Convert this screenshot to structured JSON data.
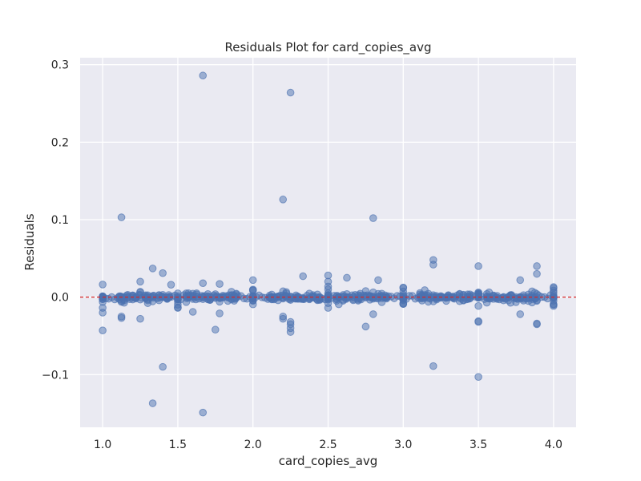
{
  "chart_data": {
    "type": "scatter",
    "title": "Residuals Plot for card_copies_avg",
    "xlabel": "card_copies_avg",
    "ylabel": "Residuals",
    "xlim": [
      0.85,
      4.15
    ],
    "ylim": [
      -0.168,
      0.309
    ],
    "xticks": [
      1.0,
      1.5,
      2.0,
      2.5,
      3.0,
      3.5,
      4.0
    ],
    "xtick_labels": [
      "1.0",
      "1.5",
      "2.0",
      "2.5",
      "3.0",
      "3.5",
      "4.0"
    ],
    "yticks": [
      -0.1,
      0.0,
      0.1,
      0.2,
      0.3
    ],
    "ytick_labels": [
      "−0.1",
      "0.0",
      "0.1",
      "0.2",
      "0.3"
    ],
    "grid": true,
    "reference_line": {
      "y": 0.0,
      "style": "dashed",
      "color": "#d62728"
    },
    "colors": {
      "background": "#eaeaf2",
      "grid": "#ffffff",
      "point": "#4c72b0"
    },
    "outliers": [
      [
        1.667,
        0.286
      ],
      [
        2.25,
        0.264
      ],
      [
        2.2,
        0.126
      ],
      [
        1.125,
        0.103
      ],
      [
        2.8,
        0.102
      ],
      [
        3.2,
        0.048
      ],
      [
        3.2,
        0.042
      ],
      [
        3.5,
        0.04
      ],
      [
        3.889,
        0.04
      ],
      [
        1.333,
        0.037
      ],
      [
        1.4,
        0.031
      ],
      [
        3.889,
        0.03
      ],
      [
        2.5,
        0.028
      ],
      [
        2.333,
        0.027
      ],
      [
        2.625,
        0.025
      ],
      [
        1.25,
        0.02
      ],
      [
        2.0,
        0.022
      ],
      [
        2.833,
        0.022
      ],
      [
        3.778,
        0.022
      ],
      [
        1.667,
        0.018
      ],
      [
        1.778,
        0.017
      ],
      [
        1.455,
        0.016
      ],
      [
        2.5,
        0.02
      ],
      [
        4.0,
        0.013
      ],
      [
        3.0,
        0.012
      ],
      [
        1.0,
        -0.043
      ],
      [
        1.75,
        -0.042
      ],
      [
        2.25,
        -0.045
      ],
      [
        2.25,
        -0.04
      ],
      [
        2.25,
        -0.035
      ],
      [
        2.25,
        -0.032
      ],
      [
        2.75,
        -0.038
      ],
      [
        3.5,
        -0.031
      ],
      [
        3.5,
        -0.032
      ],
      [
        3.889,
        -0.034
      ],
      [
        3.889,
        -0.035
      ],
      [
        1.25,
        -0.028
      ],
      [
        1.125,
        -0.027
      ],
      [
        1.125,
        -0.025
      ],
      [
        2.2,
        -0.028
      ],
      [
        2.2,
        -0.025
      ],
      [
        2.8,
        -0.022
      ],
      [
        3.778,
        -0.022
      ],
      [
        1.6,
        -0.019
      ],
      [
        1.0,
        -0.02
      ],
      [
        1.778,
        -0.021
      ],
      [
        1.4,
        -0.09
      ],
      [
        3.2,
        -0.089
      ],
      [
        3.5,
        -0.103
      ],
      [
        1.333,
        -0.137
      ],
      [
        1.667,
        -0.149
      ]
    ],
    "dense_band": {
      "x_values": [
        1.0,
        1.111,
        1.125,
        1.143,
        1.167,
        1.2,
        1.222,
        1.25,
        1.286,
        1.3,
        1.333,
        1.375,
        1.4,
        1.429,
        1.444,
        1.5,
        1.556,
        1.571,
        1.6,
        1.625,
        1.667,
        1.7,
        1.714,
        1.75,
        1.778,
        1.8,
        1.833,
        1.857,
        1.875,
        1.889,
        2.0,
        2.111,
        2.125,
        2.143,
        2.167,
        2.2,
        2.222,
        2.25,
        2.286,
        2.3,
        2.333,
        2.375,
        2.4,
        2.429,
        2.444,
        2.5,
        2.556,
        2.571,
        2.6,
        2.625,
        2.667,
        2.7,
        2.714,
        2.75,
        2.778,
        2.8,
        2.833,
        2.857,
        2.875,
        2.889,
        3.0,
        3.111,
        3.125,
        3.143,
        3.167,
        3.2,
        3.222,
        3.25,
        3.286,
        3.3,
        3.333,
        3.375,
        3.4,
        3.429,
        3.444,
        3.5,
        3.556,
        3.571,
        3.6,
        3.625,
        3.667,
        3.7,
        3.714,
        3.75,
        3.778,
        3.8,
        3.833,
        3.857,
        3.875,
        3.889,
        4.0
      ],
      "y_spread": 0.012
    }
  }
}
